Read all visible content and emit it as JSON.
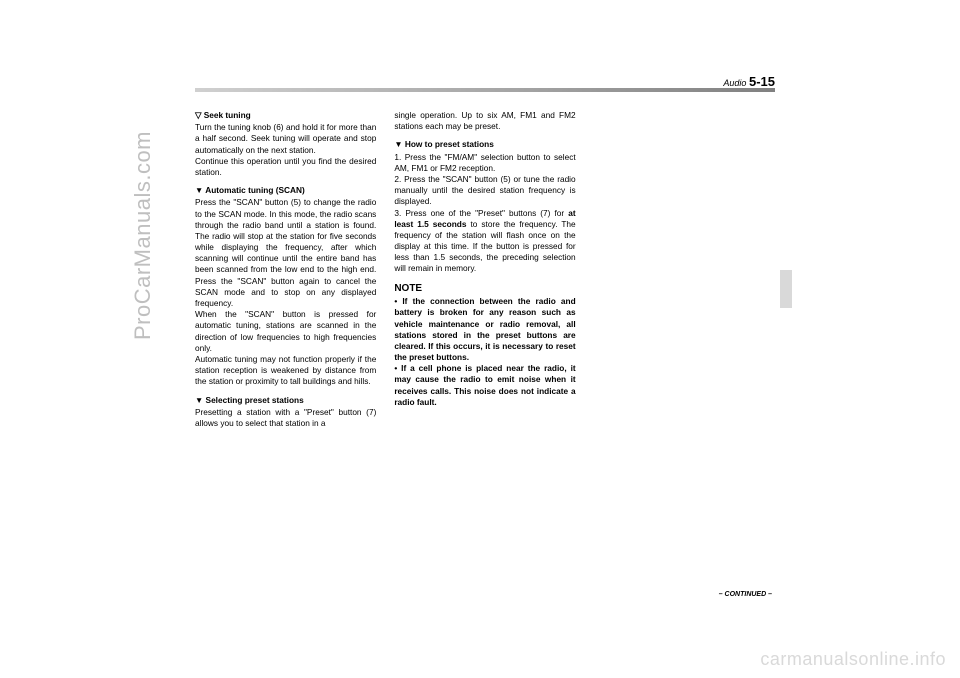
{
  "header": {
    "section": "Audio",
    "page": "5-15"
  },
  "continued": "– CONTINUED –",
  "watermarks": {
    "left": "ProCarManuals.com",
    "bottom": "carmanualsonline.info"
  },
  "col1": {
    "h1": "Seek tuning",
    "p1": "Turn the tuning knob (6) and hold it for more than a half second. Seek tuning will operate and stop automatically on the next station.",
    "p1b": "Continue this operation until you find the desired station.",
    "h2": "Automatic tuning (SCAN)",
    "p2": "Press the \"SCAN\" button (5) to change the radio to the SCAN mode. In this mode, the radio scans through the radio band until a station is found. The radio will stop at the station for five seconds while displaying the frequency, after which scanning will continue until the entire band has been scanned from the low end to the high end. Press the \"SCAN\" button again to cancel the SCAN mode and to stop on any displayed frequency.",
    "p2b": "When the \"SCAN\" button is pressed for automatic tuning, stations are scanned in the direction of low frequencies to high frequencies only.",
    "p2c": "Automatic tuning may not function properly if the station reception is weakened by distance from the station or proximity to tall buildings and hills.",
    "h3": "Selecting preset stations",
    "p3": "Presetting a station with a \"Preset\" button (7) allows you to select that station in a"
  },
  "col2": {
    "p0": "single operation. Up to six AM, FM1 and FM2 stations each may be preset.",
    "h1": "How to preset stations",
    "p1": "1. Press the \"FM/AM\" selection button to select AM, FM1 or FM2 reception.",
    "p2": "2. Press the \"SCAN\" button (5) or tune the radio manually until the desired station frequency is displayed.",
    "p3a": "3. Press one of the \"Preset\" buttons (7) for ",
    "p3bold": "at least 1.5 seconds",
    "p3b": " to store the frequency. The frequency of the station will flash once on the display at this time. If the button is pressed for less than 1.5 seconds, the preceding selection will remain in memory.",
    "note_head": "NOTE",
    "note1": "• If the connection between the radio and battery is broken for any reason such as vehicle maintenance or radio removal, all stations stored in the preset buttons are cleared. If this occurs, it is necessary to reset the preset buttons.",
    "note2": "• If a cell phone is placed near the radio, it may cause the radio to emit noise when it receives calls. This noise does not indicate a radio fault."
  }
}
